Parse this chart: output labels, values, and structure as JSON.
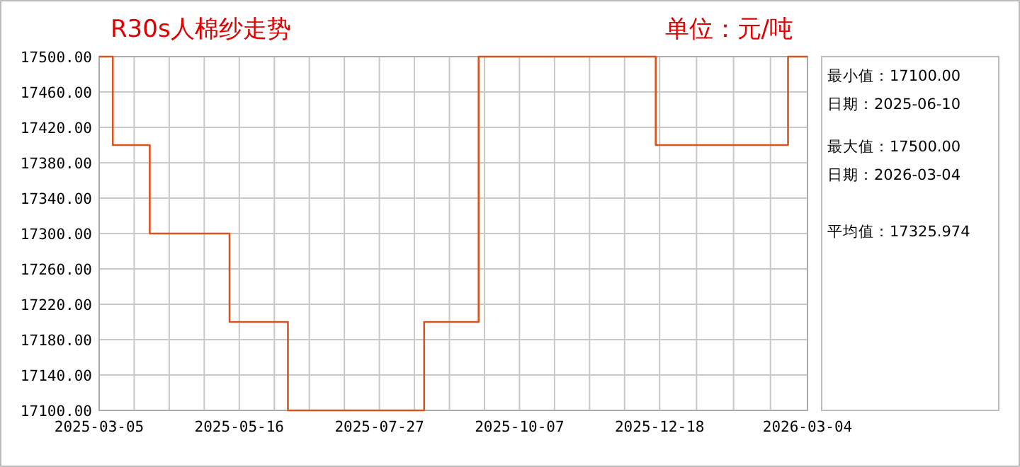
{
  "chart_data": {
    "type": "step",
    "title": "R30s人棉纱走势",
    "subtitle": "单位：元/吨",
    "x": [
      "2025-03-05",
      "2025-03-12",
      "2025-03-31",
      "2025-05-11",
      "2025-06-10",
      "2025-08-19",
      "2025-09-16",
      "2025-12-16",
      "2026-02-22",
      "2026-03-04"
    ],
    "series": [
      {
        "color": "#d9541e",
        "values": [
          17500,
          17400,
          17300,
          17200,
          17100,
          17200,
          17500,
          17400,
          17500,
          17500
        ]
      }
    ],
    "xlim": [
      "2025-03-05",
      "2026-03-04"
    ],
    "xticks": [
      "2025-03-05",
      "2025-05-16",
      "2025-07-27",
      "2025-10-07",
      "2025-12-18",
      "2026-03-04"
    ],
    "ylim": [
      17100,
      17500
    ],
    "yticks": [
      {
        "value": 17100,
        "label": "17100.00"
      },
      {
        "value": 17140,
        "label": "17140.00"
      },
      {
        "value": 17180,
        "label": "17180.00"
      },
      {
        "value": 17220,
        "label": "17220.00"
      },
      {
        "value": 17260,
        "label": "17260.00"
      },
      {
        "value": 17300,
        "label": "17300.00"
      },
      {
        "value": 17340,
        "label": "17340.00"
      },
      {
        "value": 17380,
        "label": "17380.00"
      },
      {
        "value": 17420,
        "label": "17420.00"
      },
      {
        "value": 17460,
        "label": "17460.00"
      },
      {
        "value": 17500,
        "label": "17500.00"
      }
    ],
    "grid": true,
    "marker": "none",
    "line_style": "solid",
    "annotations": [
      "最小值：17100.00",
      "日期：2025-06-10",
      "最大值：17500.00",
      "日期：2026-03-04",
      "平均值：17325.974"
    ]
  }
}
